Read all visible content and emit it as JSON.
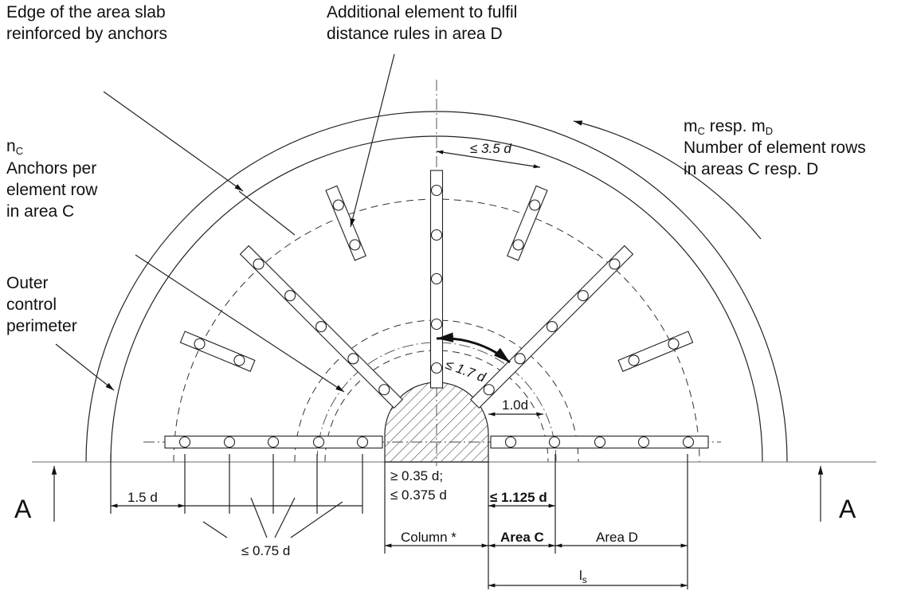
{
  "labels": {
    "edge": [
      "Edge of the area slab",
      "reinforced by anchors"
    ],
    "additional": [
      "Additional element to fulfil",
      "distance rules in area D"
    ],
    "m": {
      "m1": "m",
      "sub1": "C",
      "mid": " resp. m",
      "sub2": "D"
    },
    "rows": [
      "Number of element rows",
      "in areas C resp. D"
    ],
    "n": {
      "n": "n",
      "sub": "C"
    },
    "anchors": [
      "Anchors per",
      "element row",
      "in area C"
    ],
    "outer": [
      "Outer",
      "control",
      "perimeter"
    ]
  },
  "dimensions": {
    "d35": "≤ 3.5 d",
    "d17": "≤ 1.7 d",
    "d10": "1.0d",
    "d15": "1.5 d",
    "d035": "≥ 0.35 d;",
    "d0375": "≤ 0.375 d",
    "d1125": "≤ 1.125 d",
    "d075": "≤ 0.75 d",
    "column": "Column *",
    "areaC": "Area C",
    "areaD": "Area D",
    "ls": {
      "l": "l",
      "sub": "s"
    }
  },
  "section": [
    "A",
    "A"
  ]
}
